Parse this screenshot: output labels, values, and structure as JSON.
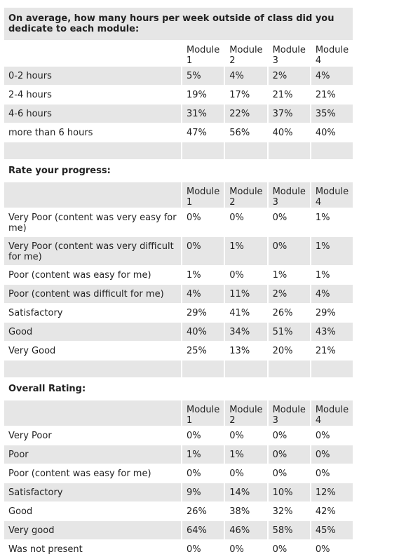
{
  "sections": [
    {
      "title": "On average, how many hours per week outside of class did you dedicate to each module:",
      "headers": [
        "Module 1",
        "Module 2",
        "Module 3",
        "Module 4"
      ],
      "rows": [
        {
          "label": "0-2 hours",
          "values": [
            "5%",
            "4%",
            "2%",
            "4%"
          ]
        },
        {
          "label": "2-4 hours",
          "values": [
            "19%",
            "17%",
            "21%",
            "21%"
          ]
        },
        {
          "label": "4-6 hours",
          "values": [
            "31%",
            "22%",
            "37%",
            "35%"
          ]
        },
        {
          "label": "more than 6 hours",
          "values": [
            "47%",
            "56%",
            "40%",
            "40%"
          ]
        }
      ]
    },
    {
      "title": "Rate your progress:",
      "headers": [
        "Module 1",
        "Module 2",
        "Module 3",
        "Module 4"
      ],
      "rows": [
        {
          "label": "Very Poor (content was very easy for me)",
          "values": [
            "0%",
            "0%",
            "0%",
            "1%"
          ]
        },
        {
          "label": "Very Poor  (content was very difficult for me)",
          "values": [
            "0%",
            "1%",
            "0%",
            "1%"
          ]
        },
        {
          "label": "Poor (content was easy for me)",
          "values": [
            "1%",
            "0%",
            "1%",
            "1%"
          ]
        },
        {
          "label": "Poor (content was difficult for me)",
          "values": [
            "4%",
            "11%",
            "2%",
            "4%"
          ]
        },
        {
          "label": "Satisfactory",
          "values": [
            "29%",
            "41%",
            "26%",
            "29%"
          ]
        },
        {
          "label": "Good",
          "values": [
            "40%",
            "34%",
            "51%",
            "43%"
          ]
        },
        {
          "label": "Very Good",
          "values": [
            "25%",
            "13%",
            "20%",
            "21%"
          ]
        }
      ]
    },
    {
      "title": "Overall Rating:",
      "headers": [
        "Module 1",
        "Module 2",
        "Module 3",
        "Module 4"
      ],
      "rows": [
        {
          "label": "Very Poor",
          "values": [
            "0%",
            "0%",
            "0%",
            "0%"
          ]
        },
        {
          "label": "Poor",
          "values": [
            "1%",
            "1%",
            "0%",
            "0%"
          ]
        },
        {
          "label": "Poor (content was easy for me)",
          "values": [
            "0%",
            "0%",
            "0%",
            "0%"
          ]
        },
        {
          "label": "Satisfactory",
          "values": [
            "9%",
            "14%",
            "10%",
            "12%"
          ]
        },
        {
          "label": "Good",
          "values": [
            "26%",
            "38%",
            "32%",
            "42%"
          ]
        },
        {
          "label": "Very good",
          "values": [
            "64%",
            "46%",
            "58%",
            "45%"
          ]
        },
        {
          "label": "Was not present",
          "values": [
            "0%",
            "0%",
            "0%",
            "0%"
          ]
        }
      ]
    }
  ]
}
